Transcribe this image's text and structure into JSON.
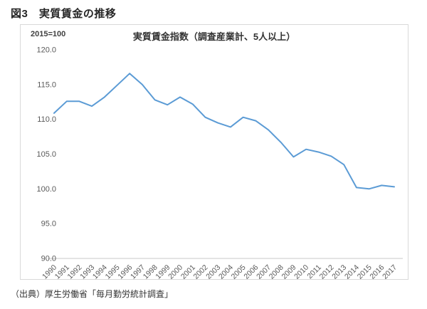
{
  "figure": {
    "title": "図3　実質賃金の推移",
    "source": "（出典）厚生労働省「毎月勤労統計調査」"
  },
  "chart_data": {
    "type": "line",
    "title": "実質賃金指数（調査産業計、5人以上）",
    "unit_note": "2015=100",
    "x": [
      1990,
      1991,
      1992,
      1993,
      1994,
      1995,
      1996,
      1997,
      1998,
      1999,
      2000,
      2001,
      2002,
      2003,
      2004,
      2005,
      2006,
      2007,
      2008,
      2009,
      2010,
      2011,
      2012,
      2013,
      2014,
      2015,
      2016,
      2017
    ],
    "series": [
      {
        "name": "実質賃金指数",
        "values": [
          110.9,
          112.6,
          112.6,
          111.9,
          113.2,
          114.9,
          116.6,
          115.0,
          112.8,
          112.1,
          113.2,
          112.2,
          110.3,
          109.5,
          108.9,
          110.3,
          109.8,
          108.5,
          106.7,
          104.6,
          105.7,
          105.3,
          104.7,
          103.5,
          100.2,
          100.0,
          100.5,
          100.3
        ]
      }
    ],
    "ylim": [
      90,
      120
    ],
    "yticks": [
      90.0,
      95.0,
      100.0,
      105.0,
      110.0,
      115.0,
      120.0
    ],
    "grid": false,
    "legend": false,
    "line_color": "#5B9BD5",
    "axis_label_color": "#595959",
    "axis_line_color": "#c9c9c9"
  }
}
